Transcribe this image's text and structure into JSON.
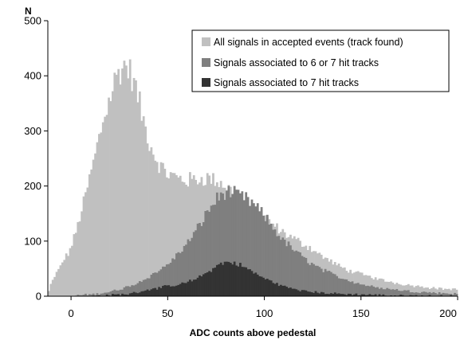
{
  "chart_data": {
    "type": "bar",
    "subtype": "overlaid-histogram",
    "title": "",
    "xlabel": "ADC counts above pedestal",
    "ylabel": "N",
    "xlim": [
      -12,
      200
    ],
    "ylim": [
      0,
      500
    ],
    "xticks": [
      0,
      50,
      100,
      150,
      200
    ],
    "yticks": [
      0,
      100,
      200,
      300,
      400,
      500
    ],
    "grid": false,
    "legend_position": "top-right",
    "bin_width": 1,
    "series": [
      {
        "name": "All signals in accepted events (track found)",
        "color": "#c0c0c0",
        "profile": [
          [
            -12,
            5
          ],
          [
            -10,
            25
          ],
          [
            -7,
            45
          ],
          [
            -4,
            65
          ],
          [
            -1,
            80
          ],
          [
            2,
            110
          ],
          [
            5,
            150
          ],
          [
            8,
            190
          ],
          [
            11,
            235
          ],
          [
            14,
            280
          ],
          [
            17,
            325
          ],
          [
            20,
            360
          ],
          [
            23,
            395
          ],
          [
            26,
            415
          ],
          [
            28,
            420
          ],
          [
            30,
            410
          ],
          [
            32,
            395
          ],
          [
            35,
            355
          ],
          [
            38,
            310
          ],
          [
            41,
            275
          ],
          [
            44,
            250
          ],
          [
            47,
            232
          ],
          [
            50,
            222
          ],
          [
            55,
            215
          ],
          [
            60,
            210
          ],
          [
            65,
            212
          ],
          [
            70,
            215
          ],
          [
            75,
            210
          ],
          [
            80,
            200
          ],
          [
            85,
            185
          ],
          [
            90,
            168
          ],
          [
            95,
            155
          ],
          [
            100,
            142
          ],
          [
            105,
            128
          ],
          [
            110,
            115
          ],
          [
            115,
            105
          ],
          [
            120,
            95
          ],
          [
            125,
            85
          ],
          [
            130,
            72
          ],
          [
            135,
            62
          ],
          [
            140,
            52
          ],
          [
            145,
            45
          ],
          [
            150,
            40
          ],
          [
            155,
            35
          ],
          [
            160,
            30
          ],
          [
            165,
            26
          ],
          [
            170,
            23
          ],
          [
            175,
            20
          ],
          [
            180,
            18
          ],
          [
            185,
            16
          ],
          [
            190,
            14
          ],
          [
            195,
            13
          ],
          [
            200,
            12
          ]
        ]
      },
      {
        "name": "Signals associated to 6 or 7 hit tracks",
        "color": "#7f7f7f",
        "profile": [
          [
            -12,
            0
          ],
          [
            0,
            0
          ],
          [
            5,
            2
          ],
          [
            10,
            3
          ],
          [
            15,
            5
          ],
          [
            20,
            8
          ],
          [
            25,
            12
          ],
          [
            30,
            18
          ],
          [
            35,
            25
          ],
          [
            40,
            35
          ],
          [
            45,
            45
          ],
          [
            50,
            58
          ],
          [
            55,
            75
          ],
          [
            60,
            95
          ],
          [
            65,
            120
          ],
          [
            70,
            150
          ],
          [
            75,
            175
          ],
          [
            80,
            190
          ],
          [
            85,
            185
          ],
          [
            90,
            178
          ],
          [
            95,
            165
          ],
          [
            100,
            145
          ],
          [
            105,
            122
          ],
          [
            110,
            100
          ],
          [
            115,
            85
          ],
          [
            120,
            70
          ],
          [
            125,
            58
          ],
          [
            130,
            48
          ],
          [
            135,
            40
          ],
          [
            140,
            33
          ],
          [
            145,
            27
          ],
          [
            150,
            22
          ],
          [
            155,
            18
          ],
          [
            160,
            15
          ],
          [
            165,
            13
          ],
          [
            170,
            11
          ],
          [
            175,
            9
          ],
          [
            180,
            8
          ],
          [
            185,
            7
          ],
          [
            190,
            6
          ],
          [
            195,
            5
          ],
          [
            200,
            4
          ]
        ]
      },
      {
        "name": "Signals associated to 7 hit tracks",
        "color": "#333333",
        "profile": [
          [
            -12,
            0
          ],
          [
            10,
            0
          ],
          [
            20,
            2
          ],
          [
            30,
            4
          ],
          [
            35,
            8
          ],
          [
            40,
            12
          ],
          [
            45,
            15
          ],
          [
            50,
            18
          ],
          [
            55,
            20
          ],
          [
            60,
            25
          ],
          [
            65,
            32
          ],
          [
            70,
            42
          ],
          [
            75,
            55
          ],
          [
            80,
            62
          ],
          [
            85,
            60
          ],
          [
            90,
            52
          ],
          [
            95,
            42
          ],
          [
            100,
            32
          ],
          [
            105,
            25
          ],
          [
            110,
            18
          ],
          [
            115,
            13
          ],
          [
            120,
            10
          ],
          [
            125,
            8
          ],
          [
            130,
            6
          ],
          [
            135,
            5
          ],
          [
            140,
            4
          ],
          [
            150,
            3
          ],
          [
            160,
            2
          ],
          [
            170,
            1
          ],
          [
            200,
            0
          ]
        ]
      }
    ]
  }
}
